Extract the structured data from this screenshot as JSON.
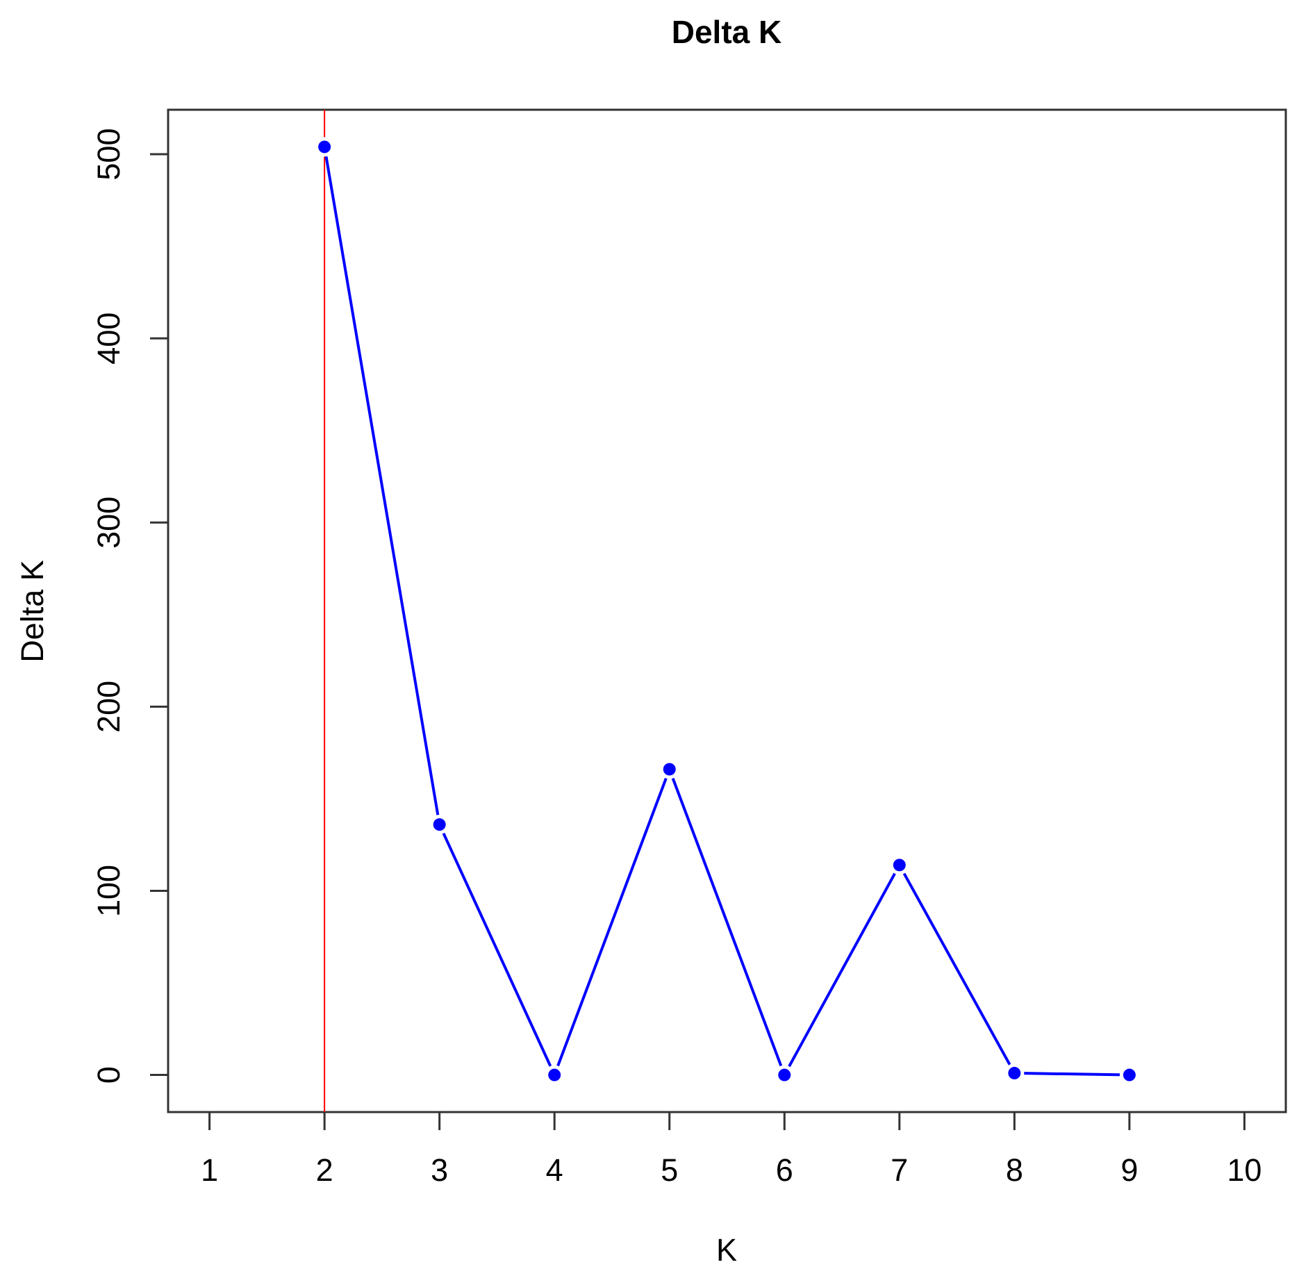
{
  "chart_data": {
    "type": "line",
    "title": "Delta K",
    "xlabel": "K",
    "ylabel": "Delta K",
    "x": [
      2,
      3,
      4,
      5,
      6,
      7,
      8,
      9
    ],
    "series": [
      {
        "color": "#0000ff",
        "values": [
          504,
          136,
          0,
          166,
          0,
          114,
          1,
          0
        ]
      }
    ],
    "xlim": [
      0.64,
      10.36
    ],
    "xticks": [
      1,
      2,
      3,
      4,
      5,
      6,
      7,
      8,
      9,
      10
    ],
    "ylim": [
      -20.16,
      524.16
    ],
    "yticks": [
      0,
      100,
      200,
      300,
      400,
      500
    ],
    "vline": 2,
    "vline_color": "#ff0000"
  }
}
